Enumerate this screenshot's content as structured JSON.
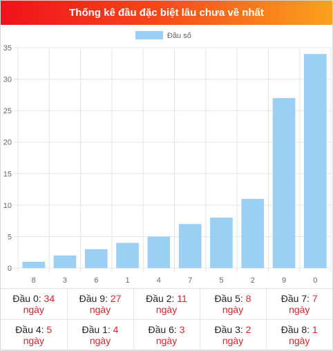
{
  "title": "Thống kê đầu đặc biệt lâu chưa về nhất",
  "chart_data": {
    "type": "bar",
    "legend": {
      "label": "Đầu số",
      "position": "top-center"
    },
    "categories": [
      "8",
      "3",
      "6",
      "1",
      "4",
      "7",
      "5",
      "2",
      "9",
      "0"
    ],
    "series": [
      {
        "name": "Đầu số",
        "values": [
          1,
          2,
          3,
          4,
          5,
          7,
          8,
          11,
          27,
          34
        ],
        "color": "#9ccff4"
      }
    ],
    "ylim": [
      0,
      35
    ],
    "yticks": [
      0,
      5,
      10,
      15,
      20,
      25,
      30,
      35
    ],
    "grid": true,
    "gridColor": "#e5e5e5"
  },
  "stats": {
    "rows": [
      [
        {
          "label": "Đầu 0",
          "value": "34",
          "unit": "ngày"
        },
        {
          "label": "Đầu 9",
          "value": "27",
          "unit": "ngày"
        },
        {
          "label": "Đầu 2",
          "value": "11",
          "unit": "ngày"
        },
        {
          "label": "Đầu 5",
          "value": "8",
          "unit": "ngày"
        },
        {
          "label": "Đầu 7",
          "value": "7",
          "unit": "ngày"
        }
      ],
      [
        {
          "label": "Đầu 4",
          "value": "5",
          "unit": "ngày"
        },
        {
          "label": "Đầu 1",
          "value": "4",
          "unit": "ngày"
        },
        {
          "label": "Đầu 6",
          "value": "3",
          "unit": "ngày"
        },
        {
          "label": "Đầu 3",
          "value": "2",
          "unit": "ngày"
        },
        {
          "label": "Đầu 8",
          "value": "1",
          "unit": "ngày"
        }
      ]
    ],
    "value_color": "#e0202a"
  }
}
